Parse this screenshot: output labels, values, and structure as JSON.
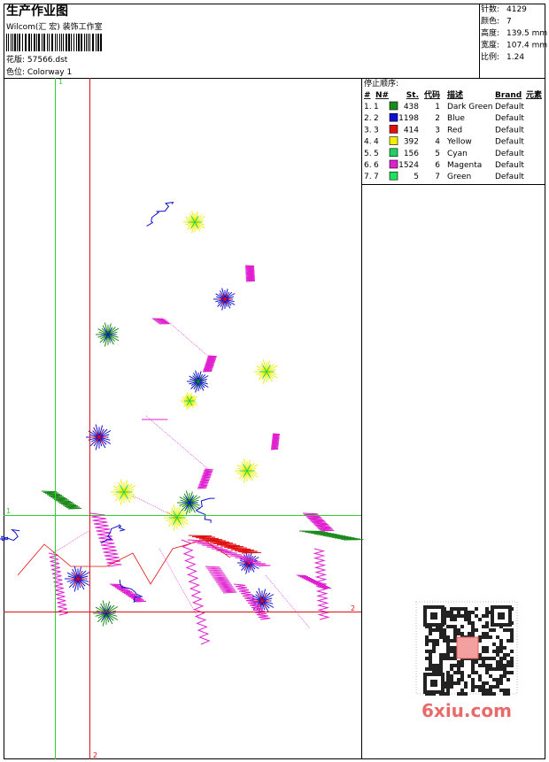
{
  "header": {
    "title": "生产作业图",
    "company": "Wilcom(汇 宏) 装饰工作室",
    "design": "花版: 57566.dst",
    "colorway": "色位: Colorway 1"
  },
  "stats": [
    {
      "label": "针数:",
      "value": "4129"
    },
    {
      "label": "颜色:",
      "value": "7"
    },
    {
      "label": "高度:",
      "value": "139.5 mm"
    },
    {
      "label": "宽度:",
      "value": "107.4 mm"
    },
    {
      "label": "比例:",
      "value": "1.24"
    }
  ],
  "table": {
    "title": "停止顺序:",
    "columns": [
      "#",
      "N#",
      "St.",
      "代码",
      "描述",
      "Brand",
      "元素"
    ],
    "rows": [
      {
        "stop": "1.",
        "n": "1",
        "color": "#1a8a1a",
        "stitches": 438,
        "code": "1",
        "description": "Dark Green",
        "brand": "Default"
      },
      {
        "stop": "2.",
        "n": "2",
        "color": "#1010d0",
        "stitches": 1198,
        "code": "2",
        "description": "Blue",
        "brand": "Default"
      },
      {
        "stop": "3.",
        "n": "3",
        "color": "#e01010",
        "stitches": 414,
        "code": "3",
        "description": "Red",
        "brand": "Default"
      },
      {
        "stop": "4.",
        "n": "4",
        "color": "#f0f000",
        "stitches": 392,
        "code": "4",
        "description": "Yellow",
        "brand": "Default"
      },
      {
        "stop": "5.",
        "n": "5",
        "color": "#20d060",
        "stitches": 156,
        "code": "5",
        "description": "Cyan",
        "brand": "Default"
      },
      {
        "stop": "6.",
        "n": "6",
        "color": "#e020d0",
        "stitches": 1524,
        "code": "6",
        "description": "Magenta",
        "brand": "Default"
      },
      {
        "stop": "7.",
        "n": "7",
        "color": "#20e060",
        "stitches": 5,
        "code": "7",
        "description": "Green",
        "brand": "Default"
      }
    ]
  },
  "guides": [
    {
      "label": "1",
      "color": "#30d030"
    },
    {
      "label": "2",
      "color": "#e01010"
    }
  ],
  "watermark": "6xiu.com"
}
